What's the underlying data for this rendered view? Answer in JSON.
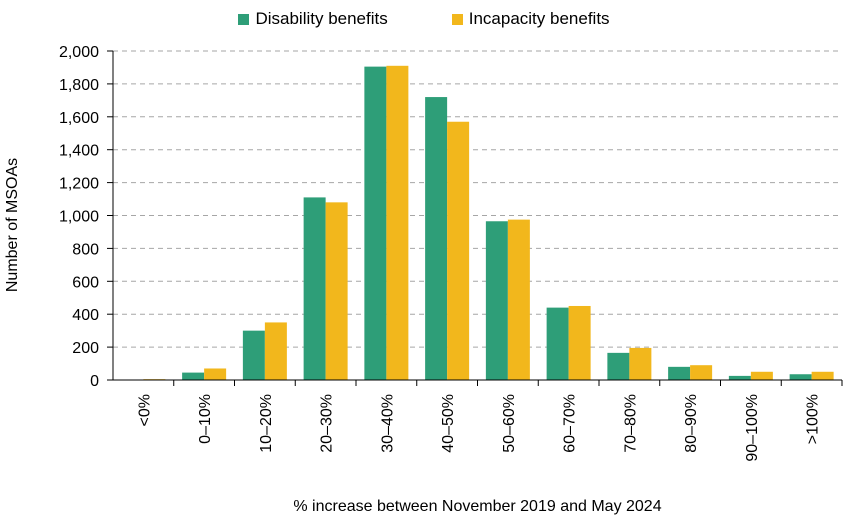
{
  "chart_data": {
    "type": "bar",
    "categories": [
      "<0%",
      "0–10%",
      "10–20%",
      "20–30%",
      "30–40%",
      "40–50%",
      "50–60%",
      "60–70%",
      "70–80%",
      "80–90%",
      "90–100%",
      ">100%"
    ],
    "series": [
      {
        "name": "Disability benefits",
        "color": "#2e9e78",
        "values": [
          0,
          45,
          300,
          1110,
          1905,
          1720,
          965,
          440,
          165,
          80,
          25,
          35
        ]
      },
      {
        "name": "Incapacity benefits",
        "color": "#f2b71c",
        "values": [
          5,
          70,
          350,
          1080,
          1910,
          1570,
          975,
          450,
          195,
          90,
          50,
          50
        ]
      }
    ],
    "title": "",
    "xlabel": "% increase between November 2019 and May 2024",
    "ylabel": "Number of MSOAs",
    "ylim": [
      0,
      2000
    ],
    "yticks": [
      "0",
      "200",
      "400",
      "600",
      "800",
      "1,000",
      "1,200",
      "1,400",
      "1,600",
      "1,800",
      "2,000"
    ],
    "grid": true,
    "legend_position": "top-center"
  }
}
